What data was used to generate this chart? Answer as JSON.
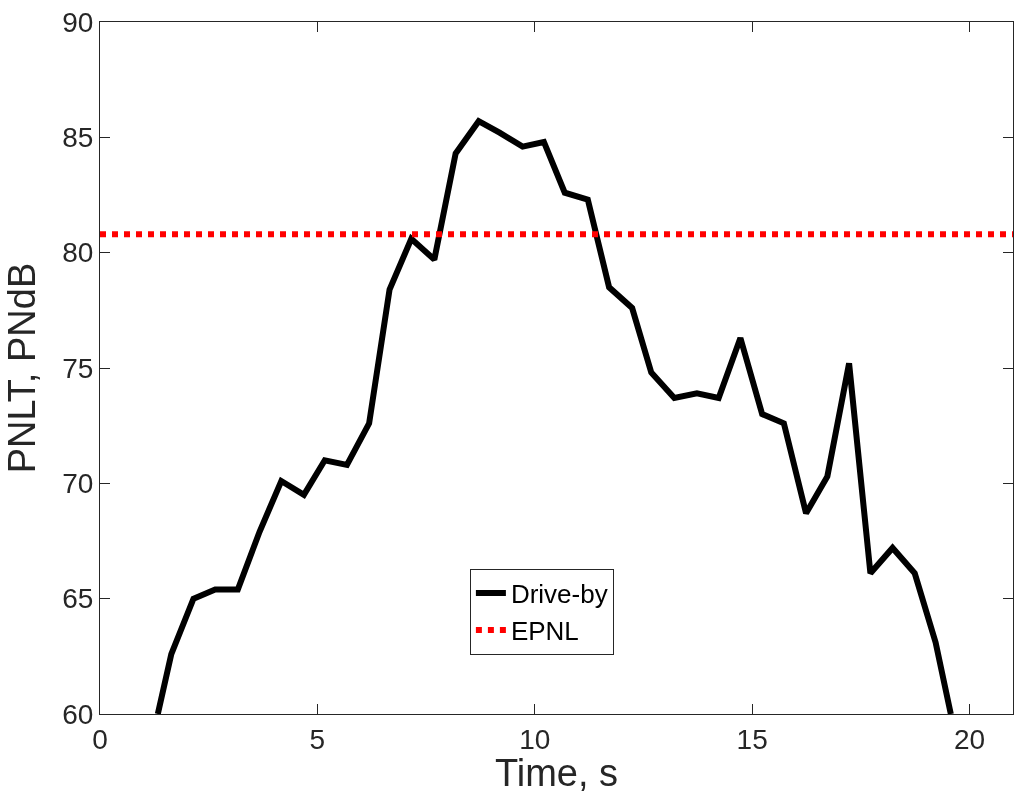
{
  "chart_data": {
    "type": "line",
    "xlabel": "Time, s",
    "ylabel": "PNLT, PNdB",
    "xlim": [
      0,
      21
    ],
    "xticks": [
      0,
      5,
      10,
      15,
      20
    ],
    "ylim": [
      60,
      90
    ],
    "yticks": [
      60,
      65,
      70,
      75,
      80,
      85,
      90
    ],
    "grid": false,
    "legend": "bottom",
    "line_style": "solid",
    "marker": "none",
    "series": [
      {
        "name": "Drive-by",
        "color": "#000000",
        "x": [
          1.33,
          1.64,
          2.15,
          2.65,
          3.17,
          3.67,
          4.17,
          4.69,
          5.17,
          5.68,
          6.19,
          6.66,
          7.16,
          7.69,
          8.18,
          8.71,
          9.19,
          9.72,
          10.21,
          10.69,
          11.22,
          11.71,
          12.24,
          12.68,
          13.21,
          13.73,
          14.23,
          14.73,
          15.23,
          15.73,
          16.24,
          16.73,
          17.23,
          17.72,
          18.23,
          18.74,
          19.22,
          19.57
        ],
        "values": [
          60,
          62.6,
          65.0,
          65.4,
          65.4,
          67.9,
          70.1,
          69.5,
          71.0,
          70.8,
          72.6,
          78.4,
          80.6,
          79.7,
          84.3,
          85.7,
          85.2,
          84.6,
          84.8,
          82.6,
          82.3,
          78.5,
          77.6,
          74.8,
          73.7,
          73.9,
          73.7,
          76.3,
          73.0,
          72.6,
          68.7,
          70.3,
          75.2,
          66.1,
          67.2,
          66.1,
          63.1,
          60
        ]
      }
    ],
    "ref_lines": [
      {
        "axis": "y",
        "value": 80.8,
        "label": "EPNL",
        "color": "#ff0000",
        "line_style": "dotted"
      }
    ]
  }
}
